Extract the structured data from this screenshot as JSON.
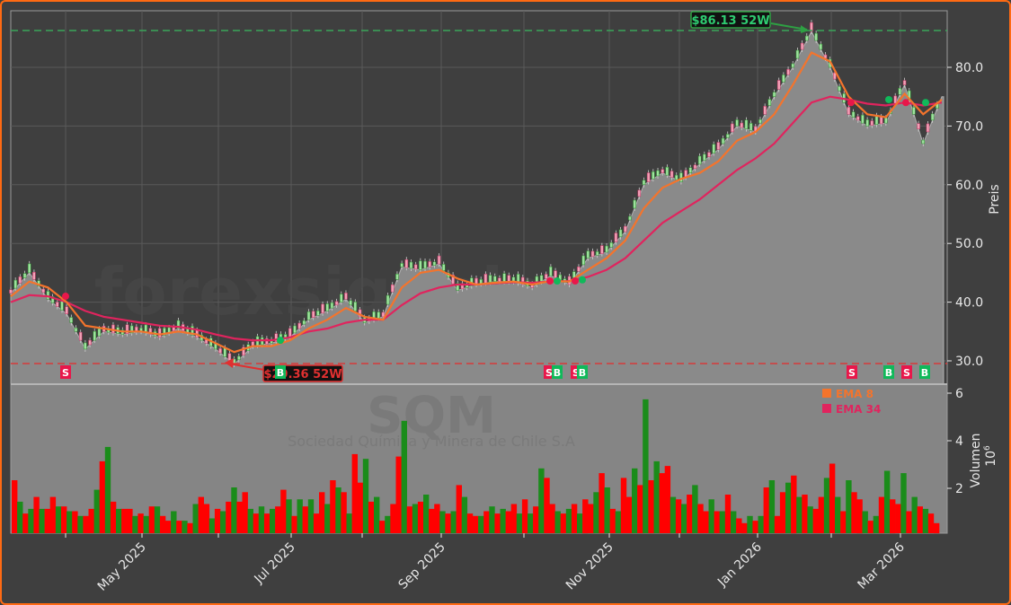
{
  "chart_data": [
    {
      "type": "line",
      "title": "SQM",
      "subtitle": "Sociedad Química y Minera de Chile S.A",
      "watermark": "forexsignale.trade",
      "xlabel": "",
      "ylabel": "Preis",
      "ylim": [
        26.5,
        89
      ],
      "yticks": [
        "30.0",
        "40.0",
        "50.0",
        "60.0",
        "70.0",
        "80.0"
      ],
      "xticks": [
        "May 2025",
        "Jul 2025",
        "Sep 2025",
        "Nov 2025",
        "Jan 2026",
        "Mar 2026"
      ],
      "grid": true,
      "legend_position": "upper right of volume panel",
      "x": [
        "2025-03-24",
        "2025-03-31",
        "2025-04-07",
        "2025-04-14",
        "2025-04-21",
        "2025-04-28",
        "2025-05-05",
        "2025-05-12",
        "2025-05-19",
        "2025-05-26",
        "2025-06-02",
        "2025-06-09",
        "2025-06-16",
        "2025-06-23",
        "2025-06-30",
        "2025-07-07",
        "2025-07-14",
        "2025-07-21",
        "2025-07-28",
        "2025-08-04",
        "2025-08-11",
        "2025-08-18",
        "2025-08-25",
        "2025-09-01",
        "2025-09-08",
        "2025-09-15",
        "2025-09-22",
        "2025-09-29",
        "2025-10-06",
        "2025-10-13",
        "2025-10-20",
        "2025-10-27",
        "2025-11-03",
        "2025-11-10",
        "2025-11-17",
        "2025-11-24",
        "2025-12-01",
        "2025-12-08",
        "2025-12-15",
        "2025-12-22",
        "2025-12-29",
        "2026-01-05",
        "2026-01-12",
        "2026-01-19",
        "2026-01-26",
        "2026-02-02",
        "2026-02-09",
        "2026-02-16",
        "2026-02-23",
        "2026-03-02",
        "2026-03-09"
      ],
      "series": [
        {
          "name": "Close",
          "color": "#a0a0a0",
          "values": [
            41.5,
            45.0,
            40.5,
            38.0,
            32.0,
            35.0,
            34.5,
            35.0,
            34.0,
            35.5,
            34.0,
            32.0,
            29.4,
            32.5,
            33.0,
            34.0,
            37.0,
            38.5,
            40.5,
            36.5,
            37.5,
            46.0,
            45.5,
            46.5,
            42.0,
            43.0,
            43.5,
            43.5,
            42.5,
            44.5,
            43.0,
            47.5,
            48.5,
            52.0,
            60.0,
            62.0,
            60.5,
            63.5,
            66.0,
            70.0,
            69.0,
            75.0,
            80.0,
            86.1,
            80.0,
            72.0,
            70.0,
            70.5,
            77.0,
            67.0,
            75.0
          ]
        },
        {
          "name": "EMA 8",
          "color": "#f4742c",
          "values": [
            41.0,
            43.5,
            42.5,
            40.0,
            36.0,
            35.5,
            35.0,
            35.0,
            34.5,
            35.0,
            34.5,
            33.0,
            31.5,
            32.5,
            32.5,
            33.5,
            35.5,
            37.0,
            39.0,
            37.5,
            37.0,
            42.5,
            45.0,
            45.5,
            44.0,
            43.0,
            43.3,
            43.5,
            43.0,
            43.6,
            43.5,
            45.5,
            47.5,
            50.5,
            56.0,
            59.5,
            61.0,
            62.0,
            64.0,
            67.5,
            69.0,
            72.0,
            77.0,
            82.5,
            81.0,
            75.0,
            72.0,
            71.5,
            75.5,
            72.0,
            74.5
          ]
        },
        {
          "name": "EMA 34",
          "color": "#e0245e",
          "values": [
            40.0,
            41.2,
            41.0,
            40.0,
            38.5,
            37.5,
            37.0,
            36.5,
            36.0,
            35.8,
            35.3,
            34.5,
            33.8,
            33.5,
            33.5,
            34.0,
            35.0,
            35.5,
            36.5,
            37.0,
            37.0,
            39.5,
            41.5,
            42.5,
            43.0,
            43.0,
            43.2,
            43.4,
            43.3,
            43.5,
            43.6,
            44.3,
            45.5,
            47.5,
            50.5,
            53.5,
            55.5,
            57.5,
            60.0,
            62.5,
            64.5,
            67.0,
            70.5,
            74.0,
            75.0,
            74.5,
            73.8,
            73.5,
            74.0,
            73.5,
            74.0
          ]
        }
      ],
      "annotations": [
        {
          "label": "$86.13 52W",
          "type": "52-week high",
          "value": 86.13,
          "color": "#2ea043"
        },
        {
          "label": "$29.36 52W",
          "type": "52-week low",
          "value": 29.36,
          "color": "#e03030"
        }
      ],
      "signals": [
        {
          "label": "S",
          "date": "2025-04-07",
          "color": "#e8174a"
        },
        {
          "label": "B",
          "date": "2025-07-01",
          "color": "#10b95a"
        },
        {
          "label": "S",
          "date": "2025-10-14",
          "color": "#e8174a"
        },
        {
          "label": "B",
          "date": "2025-10-15",
          "color": "#10b95a"
        },
        {
          "label": "S",
          "date": "2025-10-21",
          "color": "#e8174a"
        },
        {
          "label": "B",
          "date": "2025-10-22",
          "color": "#10b95a"
        },
        {
          "label": "S",
          "date": "2026-02-05",
          "color": "#e8174a"
        },
        {
          "label": "B",
          "date": "2026-02-20",
          "color": "#10b95a"
        },
        {
          "label": "S",
          "date": "2026-02-26",
          "color": "#e8174a"
        },
        {
          "label": "B",
          "date": "2026-03-05",
          "color": "#10b95a"
        }
      ]
    },
    {
      "type": "bar",
      "title": "Volumen",
      "ylabel": "Volumen",
      "yscale_label": "10^6",
      "ylim": [
        0,
        6.1
      ],
      "yticks": [
        "2",
        "4",
        "6"
      ],
      "up_color": "#1a8c1a",
      "down_color": "#ff0000",
      "values_millions": [
        2.3,
        1.4,
        0.9,
        1.1,
        1.6,
        1.1,
        1.1,
        1.6,
        1.2,
        1.2,
        1.0,
        1.0,
        0.8,
        0.8,
        1.1,
        1.9,
        3.1,
        3.7,
        1.4,
        1.1,
        1.1,
        1.1,
        0.8,
        0.9,
        0.8,
        1.2,
        1.2,
        0.8,
        0.6,
        1.0,
        0.6,
        0.6,
        0.5,
        1.3,
        1.6,
        1.3,
        0.7,
        1.1,
        1.0,
        1.4,
        2.0,
        1.4,
        1.8,
        1.1,
        0.9,
        1.2,
        0.9,
        1.1,
        1.2,
        1.9,
        1.5,
        0.8,
        1.5,
        1.2,
        1.5,
        0.9,
        1.8,
        1.3,
        2.3,
        2.0,
        1.8,
        0.9,
        3.4,
        2.2,
        3.2,
        1.4,
        1.6,
        0.6,
        0.8,
        1.3,
        3.3,
        4.8,
        1.2,
        1.3,
        1.4,
        1.7,
        1.1,
        1.3,
        1.0,
        0.9,
        1.0,
        2.1,
        1.6,
        0.9,
        0.8,
        0.8,
        1.0,
        1.2,
        0.9,
        1.1,
        1.0,
        1.3,
        0.9,
        1.5,
        0.9,
        1.2,
        2.8,
        2.4,
        1.3,
        1.0,
        0.9,
        1.1,
        1.3,
        0.9,
        1.5,
        1.3,
        1.8,
        2.6,
        2.0,
        1.1,
        1.0,
        2.4,
        1.6,
        2.8,
        2.1,
        5.7,
        2.3,
        3.1,
        2.6,
        2.9,
        1.6,
        1.5,
        1.3,
        1.7,
        2.1,
        1.3,
        1.0,
        1.5,
        1.0,
        1.0,
        1.7,
        1.0,
        0.7,
        0.5,
        0.8,
        0.6,
        0.8,
        2.0,
        2.3,
        0.8,
        1.8,
        2.2,
        2.5,
        1.6,
        1.7,
        1.2,
        1.1,
        1.6,
        2.4,
        3.0,
        1.6,
        1.0,
        2.3,
        1.8,
        1.5,
        1.0,
        0.6,
        0.8,
        1.6,
        2.7,
        1.5,
        1.3,
        2.6,
        1.0,
        1.6,
        1.2,
        1.1,
        0.9,
        0.5
      ]
    }
  ],
  "legend": {
    "items": [
      {
        "label": "EMA 8",
        "color": "#f4742c"
      },
      {
        "label": "EMA 34",
        "color": "#e0245e"
      }
    ]
  },
  "axes": {
    "price_title": "Preis",
    "volume_title": "Volumen",
    "volume_scale": "10",
    "volume_scale_exp": "6"
  },
  "labels": {
    "high_label": "$86.13 52W",
    "low_label": "$29.36 52W",
    "ticker": "SQM",
    "company": "Sociedad Química y Minera de Chile S.A",
    "watermark": "forexsignale.trade"
  }
}
